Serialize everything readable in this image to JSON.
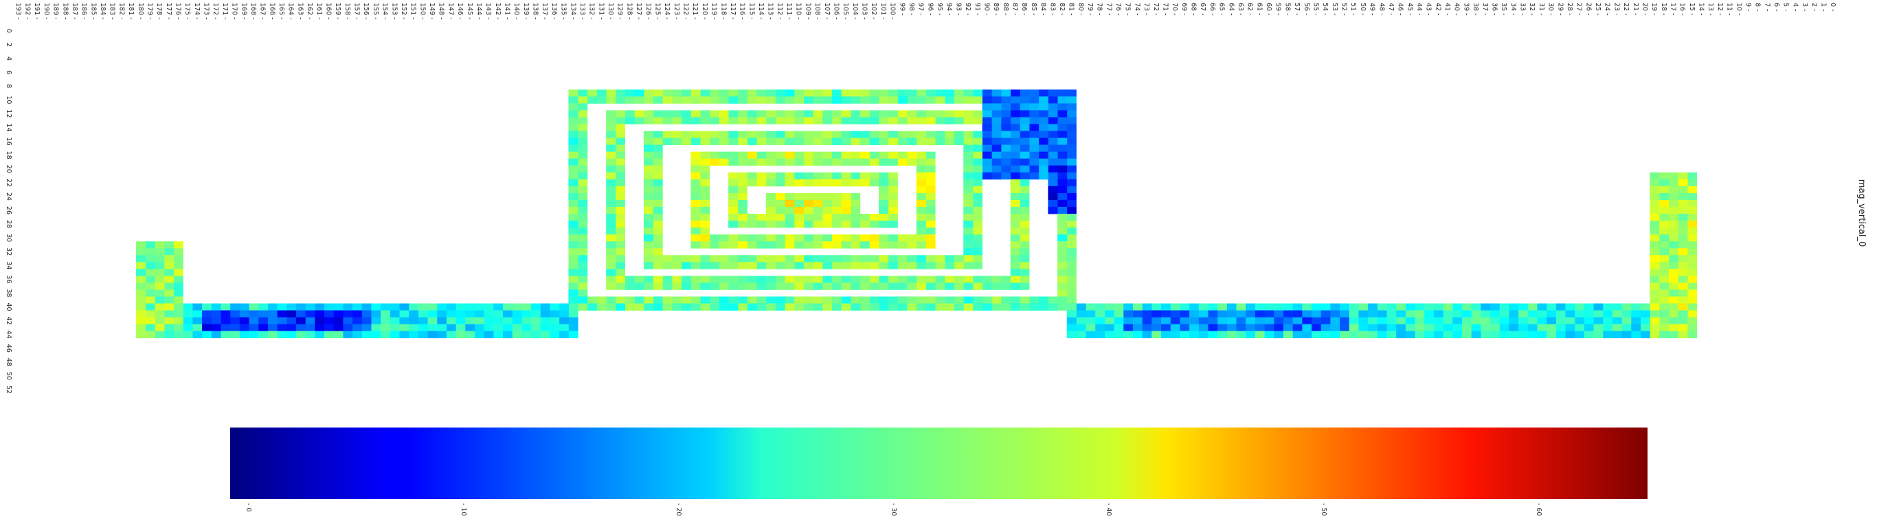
{
  "chart_data": {
    "type": "heatmap",
    "title": "",
    "series_label": "mag_vertical_0",
    "colormap": "jet",
    "value_range": [
      0,
      65
    ],
    "rows": {
      "count": 194,
      "label_step": 1,
      "order": "descending_left_to_right"
    },
    "cols": {
      "count": 54,
      "tick_labels": [
        "0",
        "2",
        "4",
        "6",
        "8",
        "10",
        "12",
        "14",
        "16",
        "18",
        "20",
        "22",
        "24",
        "26",
        "28",
        "30",
        "32",
        "34",
        "36",
        "38",
        "40",
        "42",
        "44",
        "46",
        "48",
        "50",
        "52"
      ]
    },
    "colorbar": {
      "ticks": [
        0,
        10,
        20,
        30,
        40,
        50,
        60
      ],
      "tick_labels": [
        "0",
        "10",
        "20",
        "30",
        "40",
        "50",
        "60"
      ]
    },
    "regions": [
      {
        "part": "left-loop-rectangle",
        "cols": [
          9,
          40
        ],
        "rows": [
          81,
          134
        ],
        "approx_value": 31
      },
      {
        "part": "left-loop-rectangle",
        "cols": [
          12,
          37
        ],
        "rows": [
          86,
          130
        ],
        "approx_value": 33
      },
      {
        "part": "left-loop-rectangle",
        "cols": [
          15,
          34
        ],
        "rows": [
          91,
          126
        ],
        "approx_value": 32
      },
      {
        "part": "left-loop-rectangle",
        "cols": [
          18,
          31
        ],
        "rows": [
          96,
          121
        ],
        "approx_value": 36
      },
      {
        "part": "left-loop-rectangle",
        "cols": [
          21,
          28
        ],
        "rows": [
          100,
          117
        ],
        "approx_value": 34
      },
      {
        "part": "left-loop-rectangle",
        "cols": [
          24,
          26
        ],
        "rows": [
          104,
          113
        ],
        "approx_value": 38
      },
      {
        "part": "top-right-region",
        "cols": [
          9,
          21
        ],
        "rows": [
          81,
          90
        ],
        "approx_value": 15
      },
      {
        "part": "right-edge-column",
        "cols": [
          20,
          26
        ],
        "rows": [
          81,
          83
        ],
        "approx_value": 10
      },
      {
        "part": "bottom-corridor",
        "cols": [
          40,
          44
        ],
        "rows": [
          16,
          81
        ],
        "approx_value": 26
      },
      {
        "part": "bottom-corridor-blue",
        "cols": [
          41,
          43
        ],
        "rows": [
          52,
          75
        ],
        "approx_value": 16
      },
      {
        "part": "top-corridor",
        "cols": [
          40,
          44
        ],
        "rows": [
          134,
          179
        ],
        "approx_value": 25
      },
      {
        "part": "top-corridor-blue",
        "cols": [
          41,
          43
        ],
        "rows": [
          156,
          173
        ],
        "approx_value": 11
      },
      {
        "part": "top-end-vertical",
        "cols": [
          31,
          44
        ],
        "rows": [
          176,
          180
        ],
        "approx_value": 33
      },
      {
        "part": "bottom-end-vertical",
        "cols": [
          21,
          44
        ],
        "rows": [
          15,
          19
        ],
        "approx_value": 36
      }
    ]
  }
}
